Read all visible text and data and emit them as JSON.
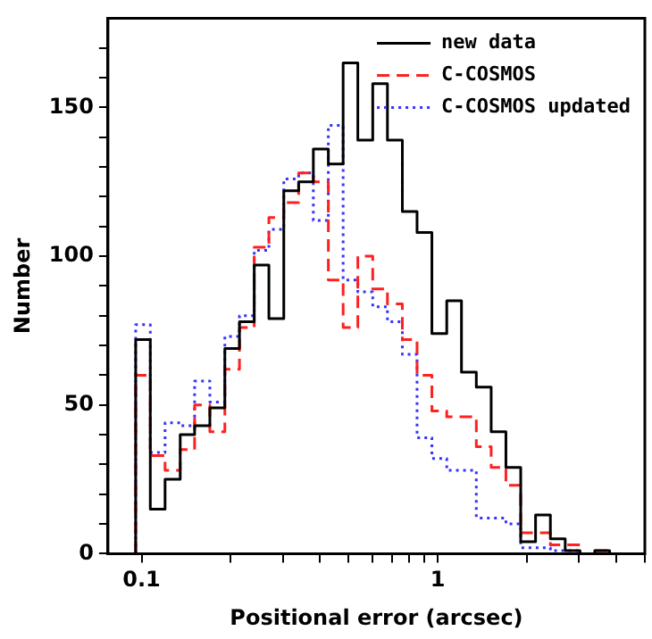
{
  "chart_data": {
    "type": "histogram",
    "xlabel": "Positional error (arcsec)",
    "ylabel": "Number",
    "bins": [
      0.0955,
      0.107,
      0.12,
      0.135,
      0.151,
      0.17,
      0.191,
      0.214,
      0.24,
      0.269,
      0.302,
      0.339,
      0.38,
      0.427,
      0.479,
      0.537,
      0.603,
      0.676,
      0.759,
      0.851,
      0.955,
      1.072,
      1.202,
      1.349,
      1.514,
      1.698,
      1.905,
      2.138,
      2.399,
      2.692,
      3.02,
      3.388,
      3.802,
      4.266
    ],
    "series": [
      {
        "name": "new data",
        "color": "#000000",
        "line_style": "solid",
        "values": [
          72,
          15,
          25,
          40,
          43,
          49,
          69,
          78,
          97,
          79,
          122,
          125,
          136,
          131,
          165,
          139,
          158,
          139,
          115,
          108,
          74,
          85,
          61,
          56,
          41,
          29,
          4,
          13,
          5,
          1,
          0,
          1,
          0
        ]
      },
      {
        "name": "C-COSMOS",
        "color": "#ff2020",
        "line_style": "dashed",
        "values": [
          60,
          33,
          28,
          35,
          50,
          41,
          62,
          76,
          103,
          113,
          118,
          128,
          125,
          92,
          76,
          100,
          89,
          84,
          72,
          60,
          48,
          46,
          46,
          36,
          29,
          23,
          7,
          7,
          3,
          3,
          0,
          1,
          0
        ]
      },
      {
        "name": "C-COSMOS updated",
        "color": "#3333ff",
        "line_style": "dotted",
        "values": [
          77,
          34,
          44,
          43,
          58,
          51,
          73,
          80,
          102,
          109,
          126,
          128,
          112,
          144,
          92,
          88,
          83,
          78,
          67,
          39,
          32,
          28,
          28,
          12,
          12,
          10,
          2,
          2,
          1,
          1,
          0,
          0,
          0
        ]
      }
    ],
    "log": "x",
    "xlim": [
      0.077,
      5
    ],
    "xticks": [
      0.1,
      {
        "value": 0.2,
        "label": null
      },
      {
        "value": 0.3,
        "label": null
      },
      {
        "value": 0.4,
        "label": null
      },
      {
        "value": 0.5,
        "label": null
      },
      {
        "value": 0.6,
        "label": null
      },
      {
        "value": 0.7,
        "label": null
      },
      {
        "value": 0.8,
        "label": null
      },
      {
        "value": 0.9,
        "label": null
      },
      1,
      {
        "value": 2,
        "label": null
      },
      {
        "value": 3,
        "label": null
      },
      {
        "value": 4,
        "label": null
      },
      {
        "value": 5,
        "label": null
      }
    ],
    "ylim": [
      0,
      180
    ],
    "yticks": [
      0,
      {
        "value": 10,
        "label": null
      },
      {
        "value": 20,
        "label": null
      },
      {
        "value": 30,
        "label": null
      },
      {
        "value": 40,
        "label": null
      },
      50,
      {
        "value": 60,
        "label": null
      },
      {
        "value": 70,
        "label": null
      },
      {
        "value": 80,
        "label": null
      },
      {
        "value": 90,
        "label": null
      },
      100,
      {
        "value": 110,
        "label": null
      },
      {
        "value": 120,
        "label": null
      },
      {
        "value": 130,
        "label": null
      },
      {
        "value": 140,
        "label": null
      },
      150,
      {
        "value": 160,
        "label": null
      },
      {
        "value": 170,
        "label": null
      }
    ],
    "grid": false,
    "legend": "top right"
  }
}
